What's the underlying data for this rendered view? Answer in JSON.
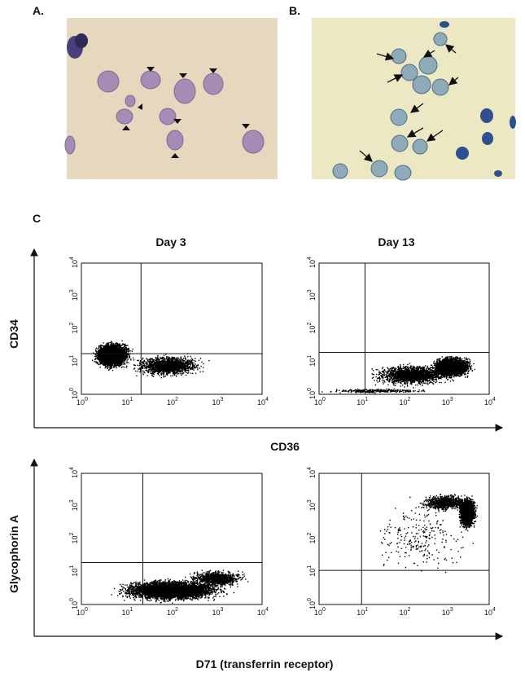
{
  "panel_a": {
    "label": "A."
  },
  "panel_b": {
    "label": "B."
  },
  "panel_c": {
    "label": "C",
    "columns": [
      "Day 3",
      "Day 13"
    ],
    "rows": [
      {
        "y_label": "CD34",
        "x_label": "CD36"
      },
      {
        "y_label": "Glycophorin A",
        "x_label": "D71 (transferrin receptor)"
      }
    ],
    "tick_labels": [
      {
        "base": "10",
        "exp": "0"
      },
      {
        "base": "10",
        "exp": "1"
      },
      {
        "base": "10",
        "exp": "2"
      },
      {
        "base": "10",
        "exp": "3"
      },
      {
        "base": "10",
        "exp": "4"
      }
    ]
  }
}
